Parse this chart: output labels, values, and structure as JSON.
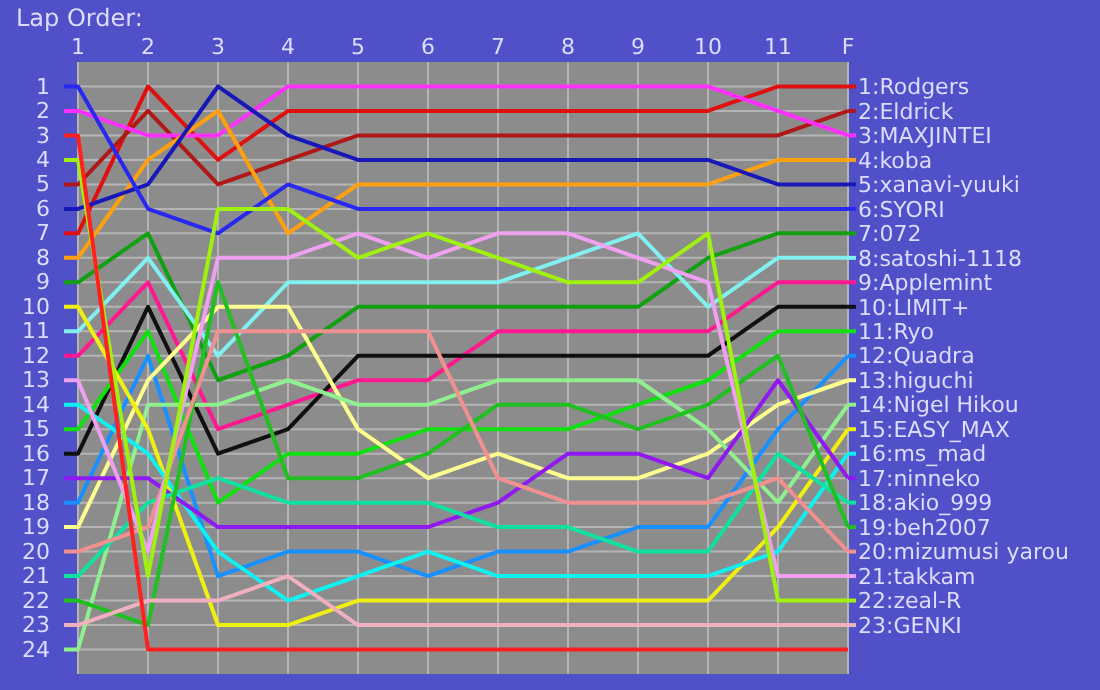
{
  "chart_data": {
    "type": "line",
    "title": "Lap Order:",
    "categories": [
      "1",
      "2",
      "3",
      "4",
      "5",
      "6",
      "7",
      "8",
      "9",
      "10",
      "11",
      "F"
    ],
    "ylim": [
      25,
      0
    ],
    "yticks": [
      1,
      2,
      3,
      4,
      5,
      6,
      7,
      8,
      9,
      10,
      11,
      12,
      13,
      14,
      15,
      16,
      17,
      18,
      19,
      20,
      21,
      22,
      23,
      24
    ],
    "grid": true,
    "legend": "right",
    "series": [
      {
        "name": "1:Rodgers",
        "color": "#e01010",
        "values": [
          7,
          1,
          4,
          2,
          2,
          2,
          2,
          2,
          2,
          2,
          1,
          1
        ]
      },
      {
        "name": "2:Eldrick",
        "color": "#b01818",
        "values": [
          5,
          2,
          5,
          4,
          3,
          3,
          3,
          3,
          3,
          3,
          3,
          2
        ]
      },
      {
        "name": "3:MAXJINTEI",
        "color": "#ff30ff",
        "values": [
          2,
          3,
          3,
          1,
          1,
          1,
          1,
          1,
          1,
          1,
          2,
          3
        ]
      },
      {
        "name": "4:koba",
        "color": "#ffa010",
        "values": [
          8,
          4,
          2,
          7,
          5,
          5,
          5,
          5,
          5,
          5,
          4,
          4
        ]
      },
      {
        "name": "5:xanavi-yuuki",
        "color": "#1818b8",
        "values": [
          6,
          5,
          1,
          3,
          4,
          4,
          4,
          4,
          4,
          4,
          5,
          5
        ]
      },
      {
        "name": "6:SYORI",
        "color": "#2828f0",
        "values": [
          1,
          6,
          7,
          5,
          6,
          6,
          6,
          6,
          6,
          6,
          6,
          6
        ]
      },
      {
        "name": "7:072",
        "color": "#10a010",
        "values": [
          9,
          7,
          13,
          12,
          10,
          10,
          10,
          10,
          10,
          8,
          7,
          7
        ]
      },
      {
        "name": "8:satoshi-1118",
        "color": "#80f0f0",
        "values": [
          11,
          8,
          12,
          9,
          9,
          9,
          9,
          8,
          7,
          10,
          8,
          8
        ]
      },
      {
        "name": "9:Applemint",
        "color": "#ff1890",
        "values": [
          12,
          9,
          15,
          14,
          13,
          13,
          11,
          11,
          11,
          11,
          9,
          9
        ]
      },
      {
        "name": "10:LIMIT+",
        "color": "#101010",
        "values": [
          16,
          10,
          16,
          15,
          12,
          12,
          12,
          12,
          12,
          12,
          10,
          10
        ]
      },
      {
        "name": "11:Ryo",
        "color": "#10e010",
        "values": [
          15,
          11,
          18,
          16,
          16,
          15,
          15,
          15,
          14,
          13,
          11,
          11
        ]
      },
      {
        "name": "12:Quadra",
        "color": "#1890ff",
        "values": [
          18,
          12,
          21,
          20,
          20,
          21,
          20,
          20,
          19,
          19,
          15,
          12
        ]
      },
      {
        "name": "13:higuchi",
        "color": "#ffff90",
        "values": [
          19,
          13,
          10,
          10,
          15,
          17,
          16,
          17,
          17,
          16,
          14,
          13
        ]
      },
      {
        "name": "14:Nigel Hikou",
        "color": "#90f090",
        "values": [
          24,
          14,
          14,
          13,
          14,
          14,
          13,
          13,
          13,
          15,
          18,
          14
        ]
      },
      {
        "name": "15:EASY_MAX",
        "color": "#f0f010",
        "values": [
          10,
          15,
          23,
          23,
          22,
          22,
          22,
          22,
          22,
          22,
          19,
          15
        ]
      },
      {
        "name": "16:ms_mad",
        "color": "#10f0f0",
        "values": [
          14,
          16,
          20,
          22,
          21,
          20,
          21,
          21,
          21,
          21,
          20,
          16
        ]
      },
      {
        "name": "17:ninneko",
        "color": "#9018f0",
        "values": [
          17,
          17,
          19,
          19,
          19,
          19,
          18,
          16,
          16,
          17,
          13,
          17
        ]
      },
      {
        "name": "18:akio_999",
        "color": "#10e0a0",
        "values": [
          21,
          18,
          17,
          18,
          18,
          18,
          19,
          19,
          20,
          20,
          16,
          18
        ]
      },
      {
        "name": "19:beh2007",
        "color": "#20c020",
        "values": [
          22,
          23,
          9,
          17,
          17,
          16,
          14,
          14,
          15,
          14,
          12,
          19
        ]
      },
      {
        "name": "20:mizumusi yarou",
        "color": "#f09090",
        "values": [
          20,
          19,
          11,
          11,
          11,
          11,
          17,
          18,
          18,
          18,
          17,
          20
        ]
      },
      {
        "name": "21:takkam",
        "color": "#f0a0f0",
        "values": [
          13,
          20,
          8,
          8,
          7,
          8,
          7,
          7,
          8,
          9,
          21,
          21
        ]
      },
      {
        "name": "22:zeal-R",
        "color": "#a0f010",
        "values": [
          4,
          21,
          6,
          6,
          8,
          7,
          8,
          9,
          9,
          7,
          22,
          22
        ]
      },
      {
        "name": "23:GENKI",
        "color": "#f0b0c0",
        "values": [
          23,
          22,
          22,
          21,
          23,
          23,
          23,
          23,
          23,
          23,
          23,
          23
        ]
      },
      {
        "color": "#ff2020",
        "values": [
          3,
          24,
          24,
          24,
          24,
          24,
          24,
          24,
          24,
          24,
          24,
          24
        ]
      }
    ]
  }
}
